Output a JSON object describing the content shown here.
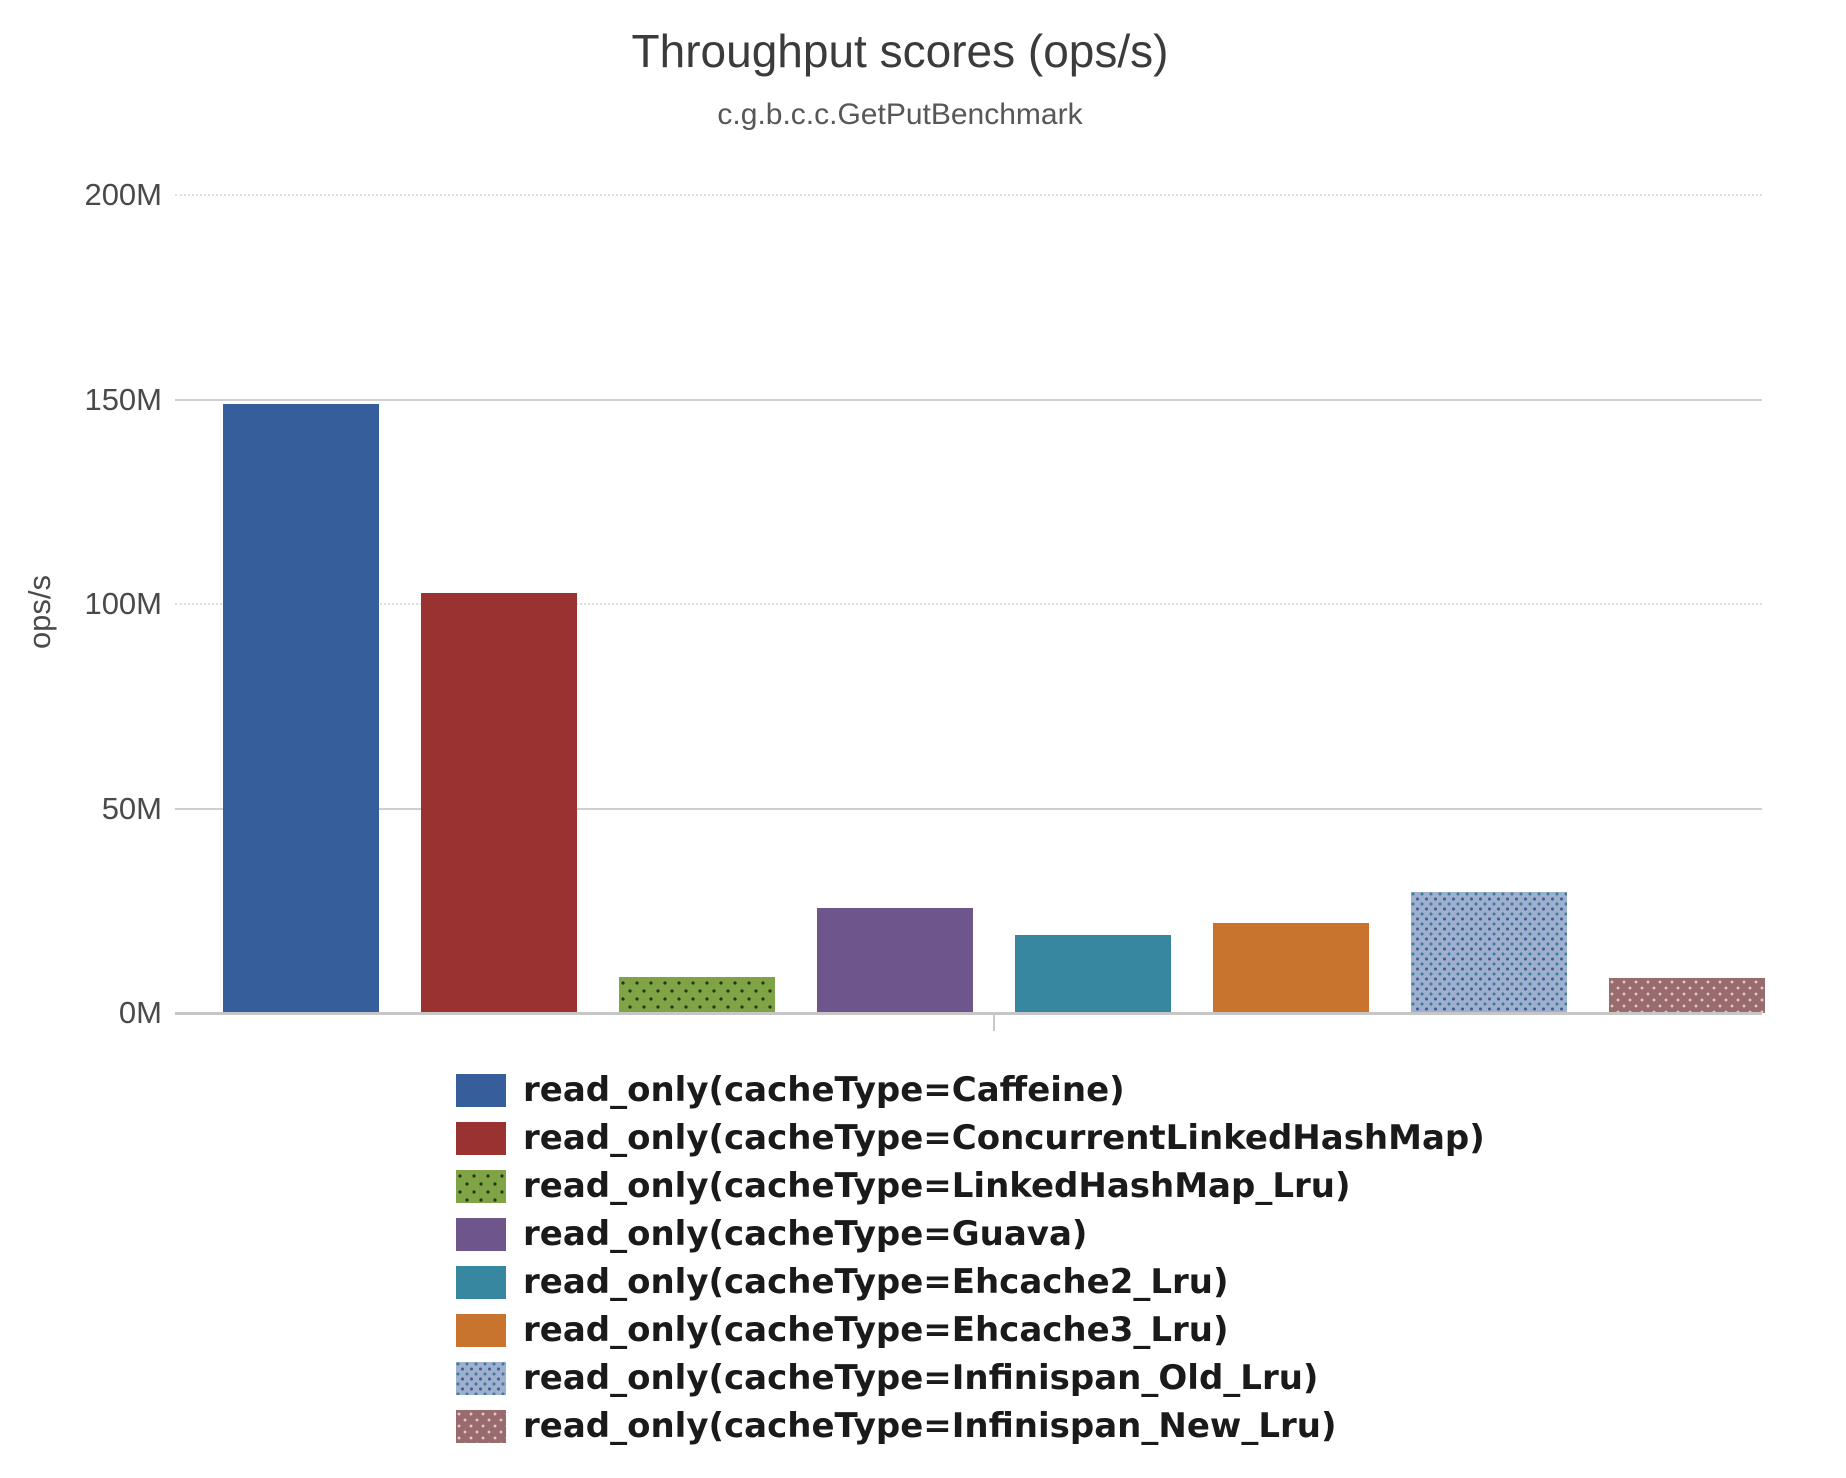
{
  "header": {
    "title": "Throughput scores (ops/s)",
    "subtitle": "c.g.b.c.c.GetPutBenchmark"
  },
  "chart_data": {
    "type": "bar",
    "title": "Throughput scores (ops/s)",
    "subtitle": "c.g.b.c.c.GetPutBenchmark",
    "xlabel": "",
    "ylabel": "ops/s",
    "unit": "million ops/s",
    "ylim_mops": [
      0,
      200
    ],
    "grid": true,
    "legend_position": "bottom",
    "yticks": [
      {
        "label": "0M",
        "value": 0,
        "style": "base"
      },
      {
        "label": "50M",
        "value": 50,
        "style": "solid"
      },
      {
        "label": "100M",
        "value": 100,
        "style": "dotted"
      },
      {
        "label": "150M",
        "value": 150,
        "style": "solid"
      },
      {
        "label": "200M",
        "value": 200,
        "style": "dotted"
      }
    ],
    "series": [
      {
        "id": "caffeine",
        "name": "read_only(cacheType=Caffeine)",
        "value_mops": 148.8,
        "color": "#355e9a",
        "pattern": "none"
      },
      {
        "id": "concurrent-linked-hashmap",
        "name": "read_only(cacheType=ConcurrentLinkedHashMap)",
        "value_mops": 102.7,
        "color": "#9a3232",
        "pattern": "none"
      },
      {
        "id": "linked-hashmap-lru",
        "name": "read_only(cacheType=LinkedHashMap_Lru)",
        "value_mops": 8.8,
        "color": "#7ea445",
        "pattern": "dots-dark"
      },
      {
        "id": "guava",
        "name": "read_only(cacheType=Guava)",
        "value_mops": 25.7,
        "color": "#6e558c",
        "pattern": "none"
      },
      {
        "id": "ehcache2-lru",
        "name": "read_only(cacheType=Ehcache2_Lru)",
        "value_mops": 19.1,
        "color": "#3787a0",
        "pattern": "none"
      },
      {
        "id": "ehcache3-lru",
        "name": "read_only(cacheType=Ehcache3_Lru)",
        "value_mops": 22.0,
        "color": "#c8742f",
        "pattern": "none"
      },
      {
        "id": "infinispan-old-lru",
        "name": "read_only(cacheType=Infinispan_Old_Lru)",
        "value_mops": 29.6,
        "color": "#9fafd0",
        "pattern": "dots-blue"
      },
      {
        "id": "infinispan-new-lru",
        "name": "read_only(cacheType=Infinispan_New_Lru)",
        "value_mops": 8.6,
        "color": "#9a6b6e",
        "pattern": "dots-light"
      }
    ]
  }
}
